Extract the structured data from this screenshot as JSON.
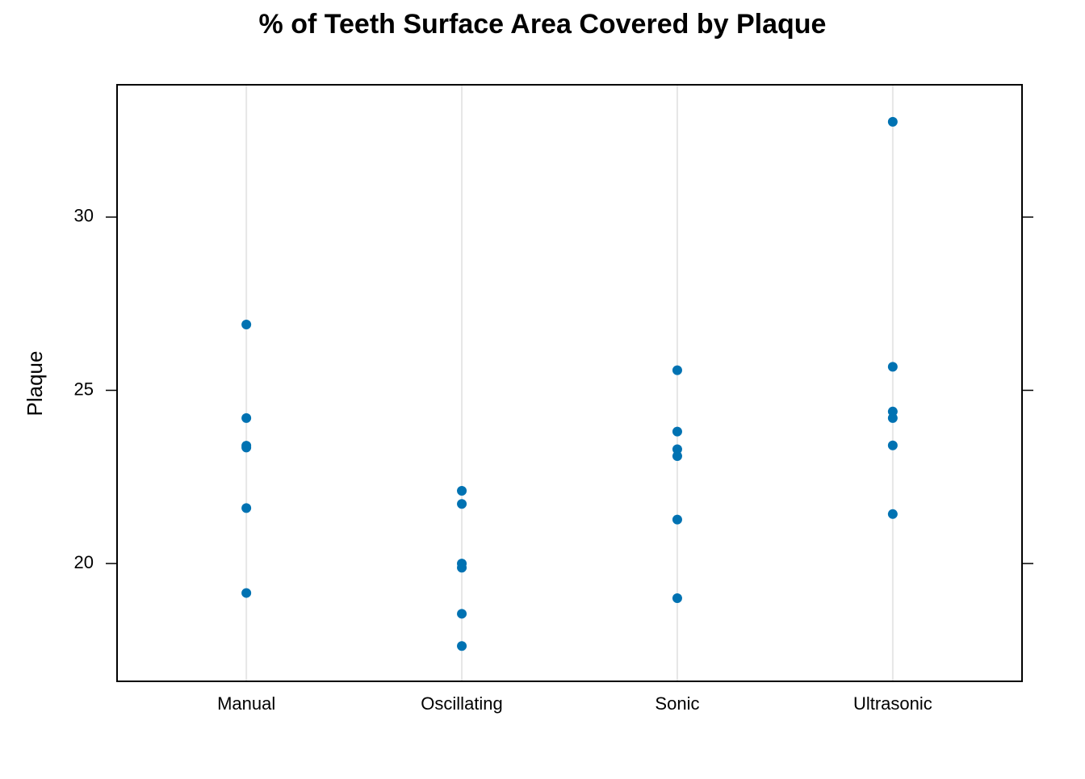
{
  "chart_data": {
    "type": "strip",
    "title": "% of Teeth Surface Area Covered by Plaque",
    "y_label": "Plaque",
    "categories": [
      "Manual",
      "Oscillating",
      "Sonic",
      "Ultrasonic"
    ],
    "x": [
      "Manual",
      "Manual",
      "Manual",
      "Manual",
      "Manual",
      "Manual",
      "Oscillating",
      "Oscillating",
      "Oscillating",
      "Oscillating",
      "Oscillating",
      "Oscillating",
      "Sonic",
      "Sonic",
      "Sonic",
      "Sonic",
      "Sonic",
      "Sonic",
      "Ultrasonic",
      "Ultrasonic",
      "Ultrasonic",
      "Ultrasonic",
      "Ultrasonic",
      "Ultrasonic"
    ],
    "values": [
      26.9,
      24.2,
      23.4,
      23.35,
      21.6,
      19.15,
      22.1,
      21.72,
      20.0,
      19.88,
      18.55,
      17.62,
      25.58,
      23.81,
      23.3,
      23.1,
      21.27,
      19.0,
      32.75,
      25.68,
      24.39,
      24.2,
      23.41,
      21.43
    ],
    "color": "#0072B2",
    "ylim": [
      16.6,
      33.82
    ],
    "yticks": [
      20,
      25,
      30
    ],
    "grid": true
  }
}
